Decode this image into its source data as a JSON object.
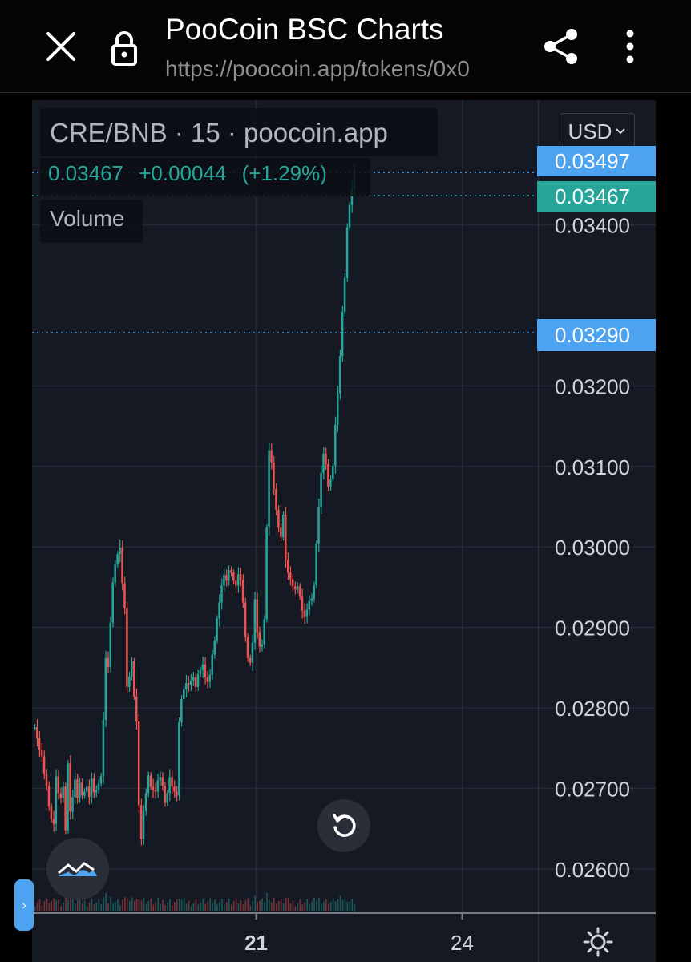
{
  "browser": {
    "title": "PooCoin BSC Charts",
    "url": "https://poocoin.app/tokens/0x0"
  },
  "legend": {
    "symbol": "CRE/BNB · 15 · poocoin.app",
    "price": "0.03467",
    "change": "+0.00044",
    "change_pct": "(+1.29%)",
    "volume_label": "Volume"
  },
  "currency_button": "USD",
  "price_tags": {
    "high": "0.03497",
    "last": "0.03467",
    "crosshair": "0.03290"
  },
  "colors": {
    "up": "#26a69a",
    "down": "#ef5350",
    "accent_blue": "#4da3f0",
    "background": "#151924"
  },
  "chart_data": {
    "type": "line",
    "title": "CRE/BNB · 15 · poocoin.app",
    "xlabel": "",
    "ylabel": "",
    "ylim": [
      0.02545,
      0.03555
    ],
    "y_ticks": [
      "0.03400",
      "0.03200",
      "0.03100",
      "0.03000",
      "0.02900",
      "0.02800",
      "0.02700",
      "0.02600"
    ],
    "x_ticks": [
      {
        "label": "21",
        "index": 94
      },
      {
        "label": "24",
        "index": 181
      }
    ],
    "n_slots": 212,
    "series": [
      {
        "values": [
          0.02776,
          0.02762,
          0.02748,
          0.0274,
          0.02718,
          0.02703,
          0.02677,
          0.02662,
          0.02656,
          0.02715,
          0.02694,
          0.02688,
          0.02702,
          0.02648,
          0.02731,
          0.02671,
          0.02689,
          0.02711,
          0.02688,
          0.02707,
          0.02691,
          0.02696,
          0.02702,
          0.02689,
          0.02712,
          0.02695,
          0.02698,
          0.02706,
          0.02715,
          0.02785,
          0.02862,
          0.02851,
          0.02906,
          0.02956,
          0.02978,
          0.02991,
          0.02999,
          0.02955,
          0.02924,
          0.02826,
          0.02839,
          0.02858,
          0.02814,
          0.02783,
          0.02679,
          0.02637,
          0.02672,
          0.02694,
          0.02716,
          0.02702,
          0.02698,
          0.02696,
          0.0271,
          0.02714,
          0.02703,
          0.02682,
          0.02694,
          0.02714,
          0.02702,
          0.02696,
          0.02691,
          0.02782,
          0.02811,
          0.02823,
          0.02831,
          0.02829,
          0.02834,
          0.02838,
          0.02826,
          0.02842,
          0.02847,
          0.02854,
          0.02838,
          0.02832,
          0.02841,
          0.02866,
          0.02884,
          0.02911,
          0.02931,
          0.02952,
          0.02965,
          0.02958,
          0.02971,
          0.02968,
          0.02958,
          0.02952,
          0.02966,
          0.02959,
          0.02931,
          0.02888,
          0.02862,
          0.02856,
          0.02881,
          0.02935,
          0.02894,
          0.02876,
          0.02879,
          0.0291,
          0.03024,
          0.0312,
          0.03105,
          0.03072,
          0.03046,
          0.03024,
          0.03012,
          0.0304,
          0.02984,
          0.02968,
          0.0296,
          0.02951,
          0.02947,
          0.02951,
          0.02938,
          0.02921,
          0.02913,
          0.02922,
          0.02933,
          0.02936,
          0.02952,
          0.03004,
          0.0305,
          0.03092,
          0.03116,
          0.03103,
          0.03075,
          0.03084,
          0.03101,
          0.03152,
          0.03191,
          0.03237,
          0.03292,
          0.03334,
          0.03397,
          0.03425,
          0.03445,
          0.03467
        ]
      }
    ]
  }
}
